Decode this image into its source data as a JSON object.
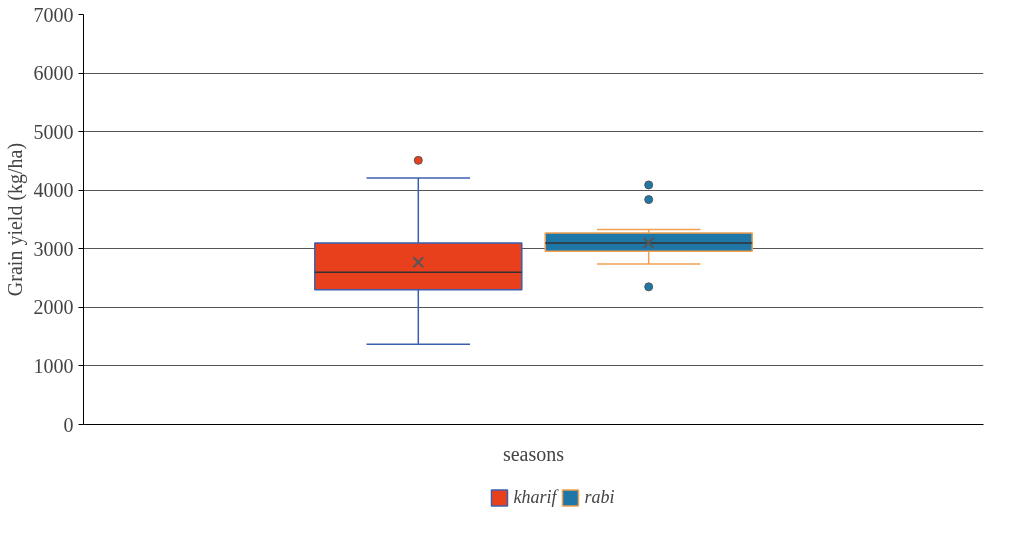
{
  "chart_data": {
    "type": "box",
    "xlabel": "seasons",
    "ylabel": "Grain yield (kg/ha)",
    "categories": [
      null
    ],
    "series": [
      {
        "name": "kharif",
        "color": "#e8401c",
        "boxes": [
          {
            "low": 1370,
            "q1": 2300,
            "median": 2600,
            "q3": 3100,
            "high": 4210,
            "mean": 2770,
            "outliers": [
              4510
            ]
          }
        ]
      },
      {
        "name": "rabi",
        "color": "#1f77a8",
        "boxes": [
          {
            "low": 2740,
            "q1": 2960,
            "median": 3100,
            "q3": 3270,
            "high": 3330,
            "mean": 3100,
            "outliers": [
              4090,
              3840,
              2350
            ]
          }
        ]
      }
    ],
    "ylim": [
      0,
      7000
    ],
    "yticks": [
      0,
      1000,
      2000,
      3000,
      4000,
      5000,
      6000,
      7000
    ],
    "grid": "y",
    "legend": "bottom",
    "marker": "circle"
  }
}
